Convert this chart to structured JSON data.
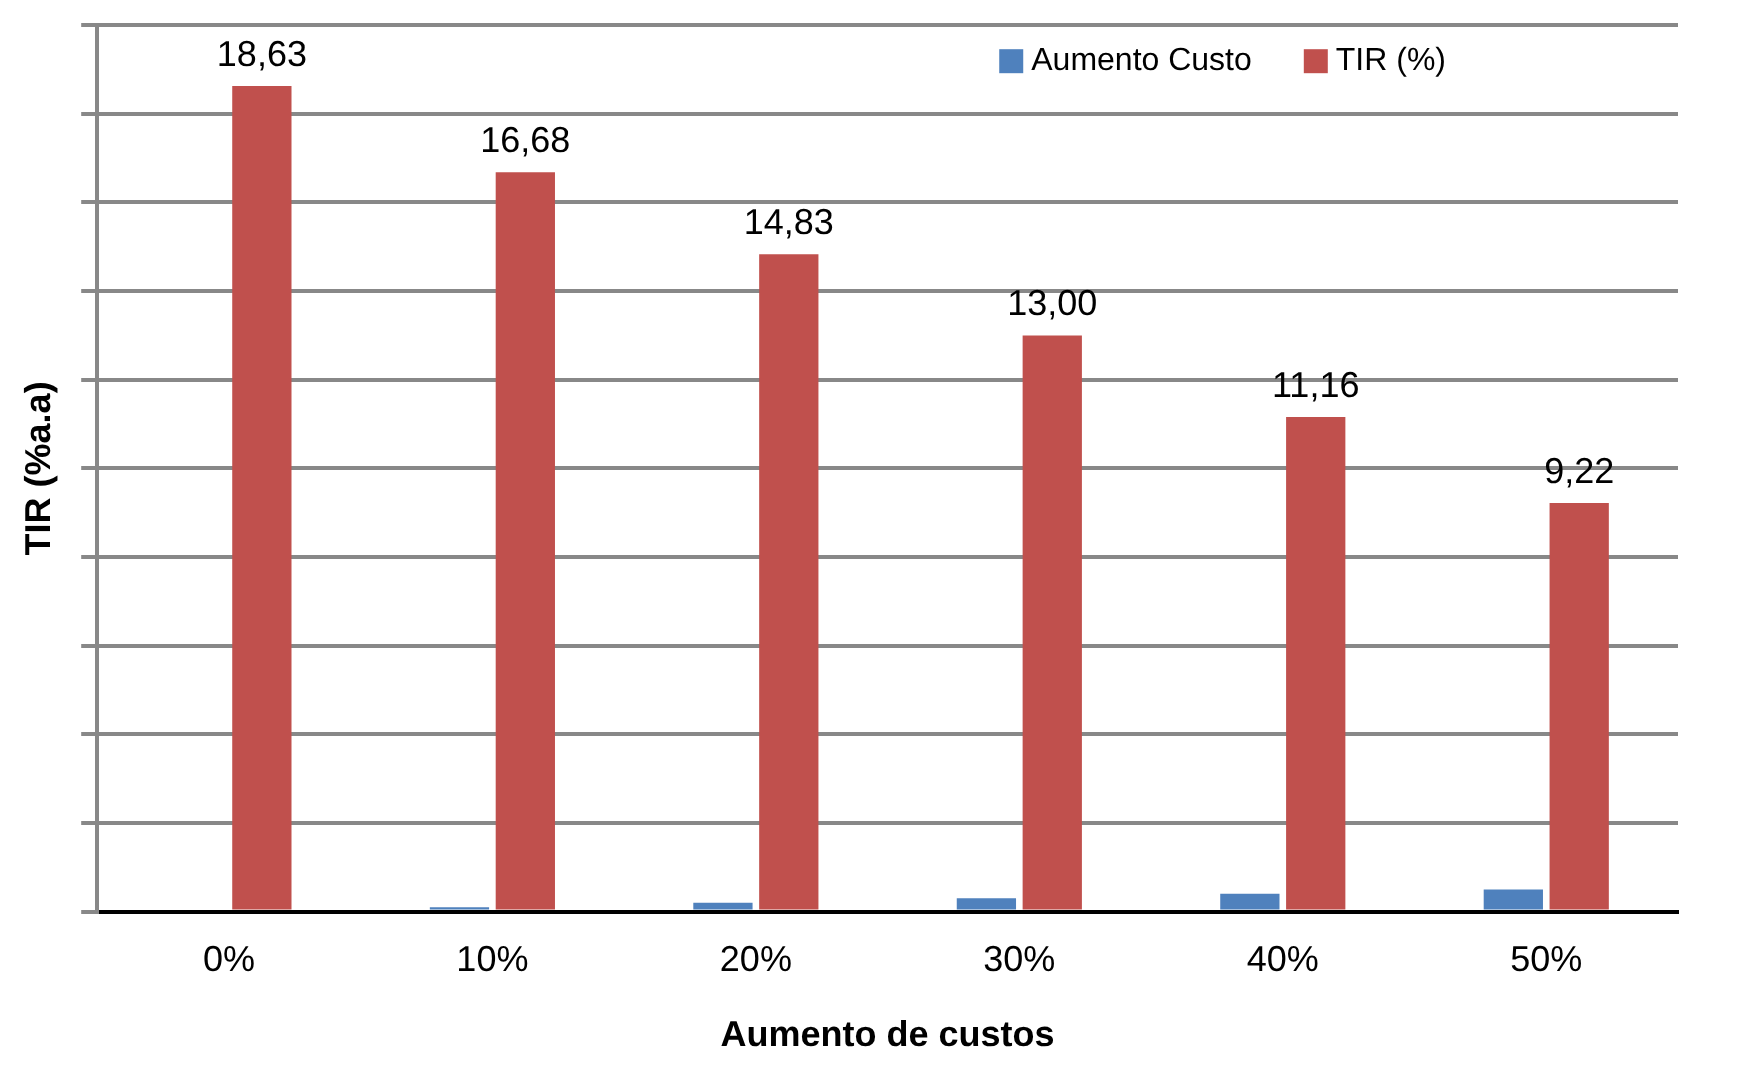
{
  "chart_data": {
    "type": "bar",
    "xlabel": "Aumento de custos",
    "ylabel": "TIR (%a.a)",
    "categories": [
      "0%",
      "10%",
      "20%",
      "30%",
      "40%",
      "50%"
    ],
    "series": [
      {
        "name": "Aumento Custo",
        "color": "#4f81bd",
        "values": [
          0,
          0.1,
          0.2,
          0.3,
          0.4,
          0.5
        ]
      },
      {
        "name": "TIR (%)",
        "color": "#c0504d",
        "values": [
          18.63,
          16.68,
          14.83,
          13.0,
          11.16,
          9.22
        ],
        "value_labels": [
          "18,63",
          "16,68",
          "14,83",
          "13,00",
          "11,16",
          "9,22"
        ]
      }
    ],
    "ylim": [
      0,
      20
    ],
    "yticks": [
      {
        "value": 0,
        "label": null
      },
      {
        "value": 2,
        "label": null
      },
      {
        "value": 4,
        "label": null
      },
      {
        "value": 6,
        "label": null
      },
      {
        "value": 8,
        "label": null
      },
      {
        "value": 10,
        "label": null
      },
      {
        "value": 12,
        "label": null
      },
      {
        "value": 14,
        "label": null
      },
      {
        "value": 16,
        "label": null
      },
      {
        "value": 18,
        "label": null
      },
      {
        "value": 20,
        "label": null
      }
    ],
    "grid": "y",
    "legend": "top right"
  }
}
